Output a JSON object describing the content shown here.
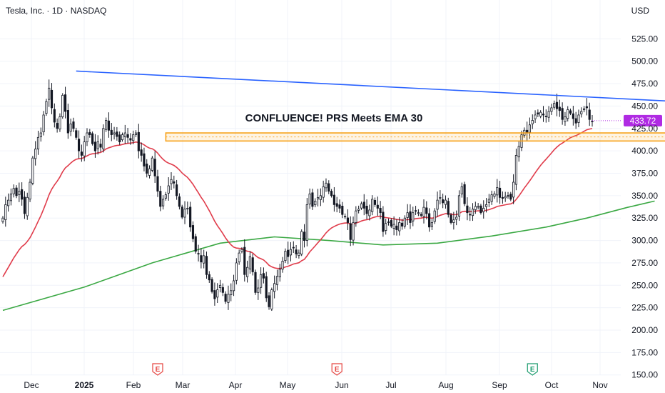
{
  "header": {
    "title": "Tesla, Inc. · 1D · NASDAQ",
    "currency": "USD"
  },
  "colors": {
    "background": "#ffffff",
    "grid": "#f0f3fa",
    "candle": "#131722",
    "trendline": "#2962ff",
    "zone": "#f7a21b",
    "ema_fast": "#e03b4a",
    "ema_slow": "#3aa843",
    "price_badge": "#b02be3",
    "earnings_red": "#e5433f",
    "earnings_green": "#1a9b6d"
  },
  "annotation": {
    "text": "CONFLUENCE! PRS Meets EMA 30"
  },
  "chart_data": {
    "type": "candlestick",
    "yaxis": {
      "ticks": [
        "525.00",
        "500.00",
        "475.00",
        "450.00",
        "425.00",
        "400.00",
        "375.00",
        "350.00",
        "325.00",
        "300.00",
        "275.00",
        "250.00",
        "225.00",
        "200.00",
        "175.00",
        "150.00"
      ],
      "min": 145,
      "max": 542
    },
    "xaxis": {
      "labels": [
        "Dec",
        "2025",
        "Feb",
        "Mar",
        "Apr",
        "May",
        "Jun",
        "Jul",
        "Aug",
        "Sep",
        "Oct",
        "Nov"
      ]
    },
    "last_price": "433.72",
    "closes": [
      325,
      340,
      345,
      352,
      358,
      350,
      355,
      346,
      330,
      348,
      365,
      392,
      402,
      415,
      420,
      440,
      455,
      470,
      448,
      432,
      425,
      438,
      462,
      444,
      420,
      430,
      425,
      415,
      400,
      395,
      410,
      420,
      418,
      408,
      400,
      410,
      404,
      425,
      434,
      423,
      418,
      420,
      416,
      410,
      418,
      420,
      415,
      412,
      418,
      420,
      400,
      395,
      383,
      375,
      380,
      392,
      372,
      355,
      338,
      346,
      351,
      361,
      368,
      364,
      350,
      338,
      326,
      335,
      336,
      315,
      302,
      288,
      285,
      276,
      283,
      262,
      256,
      243,
      235,
      245,
      250,
      242,
      232,
      240,
      244,
      255,
      275,
      286,
      290,
      262,
      270,
      282,
      265,
      242,
      247,
      262,
      258,
      236,
      226,
      245,
      252,
      260,
      268,
      277,
      288,
      282,
      290,
      292,
      285,
      286,
      310,
      300,
      340,
      352,
      338,
      344,
      348,
      350,
      360,
      364,
      355,
      350,
      340,
      338,
      336,
      329,
      327,
      320,
      301,
      320,
      333,
      335,
      341,
      336,
      330,
      334,
      346,
      340,
      336,
      331,
      310,
      319,
      320,
      316,
      318,
      312,
      320,
      316,
      325,
      331,
      320,
      331,
      333,
      331,
      328,
      337,
      330,
      315,
      320,
      333,
      345,
      348,
      342,
      345,
      329,
      320,
      323,
      326,
      350,
      360,
      341,
      331,
      329,
      335,
      338,
      338,
      331,
      336,
      340,
      346,
      351,
      352,
      359,
      348,
      347,
      349,
      350,
      346,
      365,
      395,
      405,
      418,
      423,
      420,
      429,
      434,
      440,
      441,
      443,
      440,
      438,
      444,
      448,
      453,
      447,
      445,
      435,
      438,
      446,
      442,
      436,
      431,
      440,
      444,
      447,
      448,
      435,
      433
    ],
    "ema30_end": 422,
    "ema200": [
      {
        "d": 0,
        "v": 222
      },
      {
        "d": 30,
        "v": 248
      },
      {
        "d": 55,
        "v": 275
      },
      {
        "d": 80,
        "v": 297
      },
      {
        "d": 100,
        "v": 304
      },
      {
        "d": 120,
        "v": 300
      },
      {
        "d": 140,
        "v": 295
      },
      {
        "d": 160,
        "v": 297
      },
      {
        "d": 180,
        "v": 305
      },
      {
        "d": 200,
        "v": 315
      },
      {
        "d": 215,
        "v": 325
      },
      {
        "d": 230,
        "v": 337
      },
      {
        "d": 240,
        "v": 344
      }
    ],
    "trendline": [
      {
        "d": 27,
        "v": 489
      },
      {
        "d": 268,
        "v": 452
      }
    ],
    "zone": {
      "d1": 60,
      "d2": 275,
      "top": 420,
      "bottom": 411
    },
    "earnings": [
      {
        "d": 57,
        "label": "E",
        "color": "earnings_red"
      },
      {
        "d": 123,
        "label": "E",
        "color": "earnings_red"
      },
      {
        "d": 195,
        "label": "E",
        "color": "earnings_green"
      },
      {
        "d": 265,
        "label": "E",
        "color": "earnings_red"
      }
    ]
  }
}
